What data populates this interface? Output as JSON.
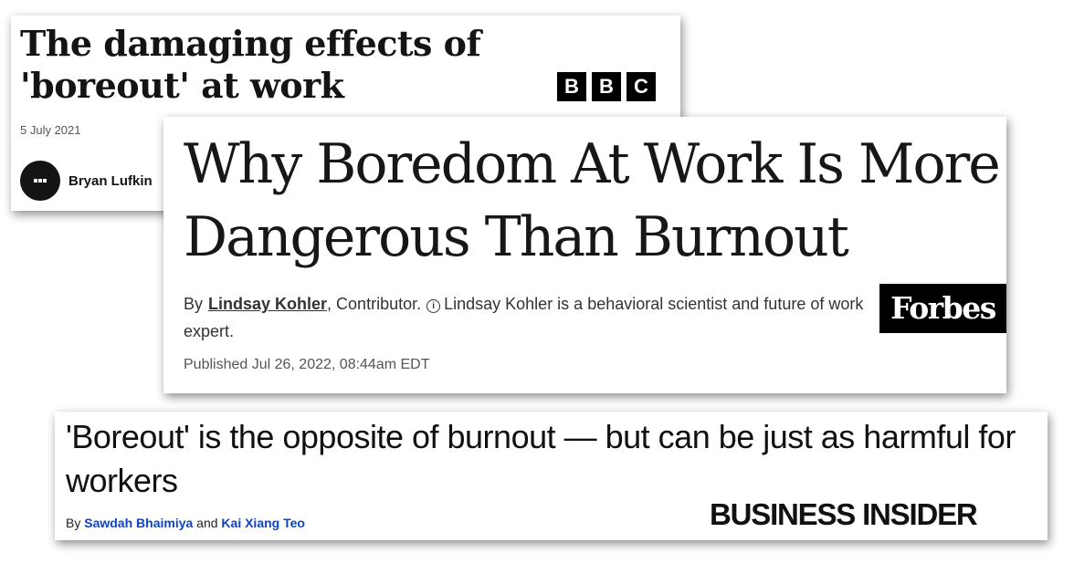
{
  "bbc": {
    "title": "The damaging effects of 'boreout' at work",
    "logo_letters": [
      "B",
      "B",
      "C"
    ],
    "date": "5 July 2021",
    "author": "Bryan Lufkin"
  },
  "forbes": {
    "title": "Why Boredom At Work Is More Dangerous Than Burnout",
    "by": "By",
    "author": "Lindsay Kohler",
    "role": ", Contributor.",
    "info_icon": "i",
    "bio": "Lindsay Kohler is a behavioral scientist and future of work expert.",
    "published": "Published Jul 26, 2022, 08:44am EDT",
    "logo": "Forbes"
  },
  "business_insider": {
    "title": "'Boreout' is the opposite of burnout — but can be just as harmful for workers",
    "by": "By",
    "author_1": "Sawdah Bhaimiya",
    "and": "and",
    "author_2": "Kai Xiang Teo",
    "logo": "BUSINESS INSIDER"
  },
  "colors": {
    "bi_author_link": "#0b44c4",
    "logo_background": "#000000"
  }
}
